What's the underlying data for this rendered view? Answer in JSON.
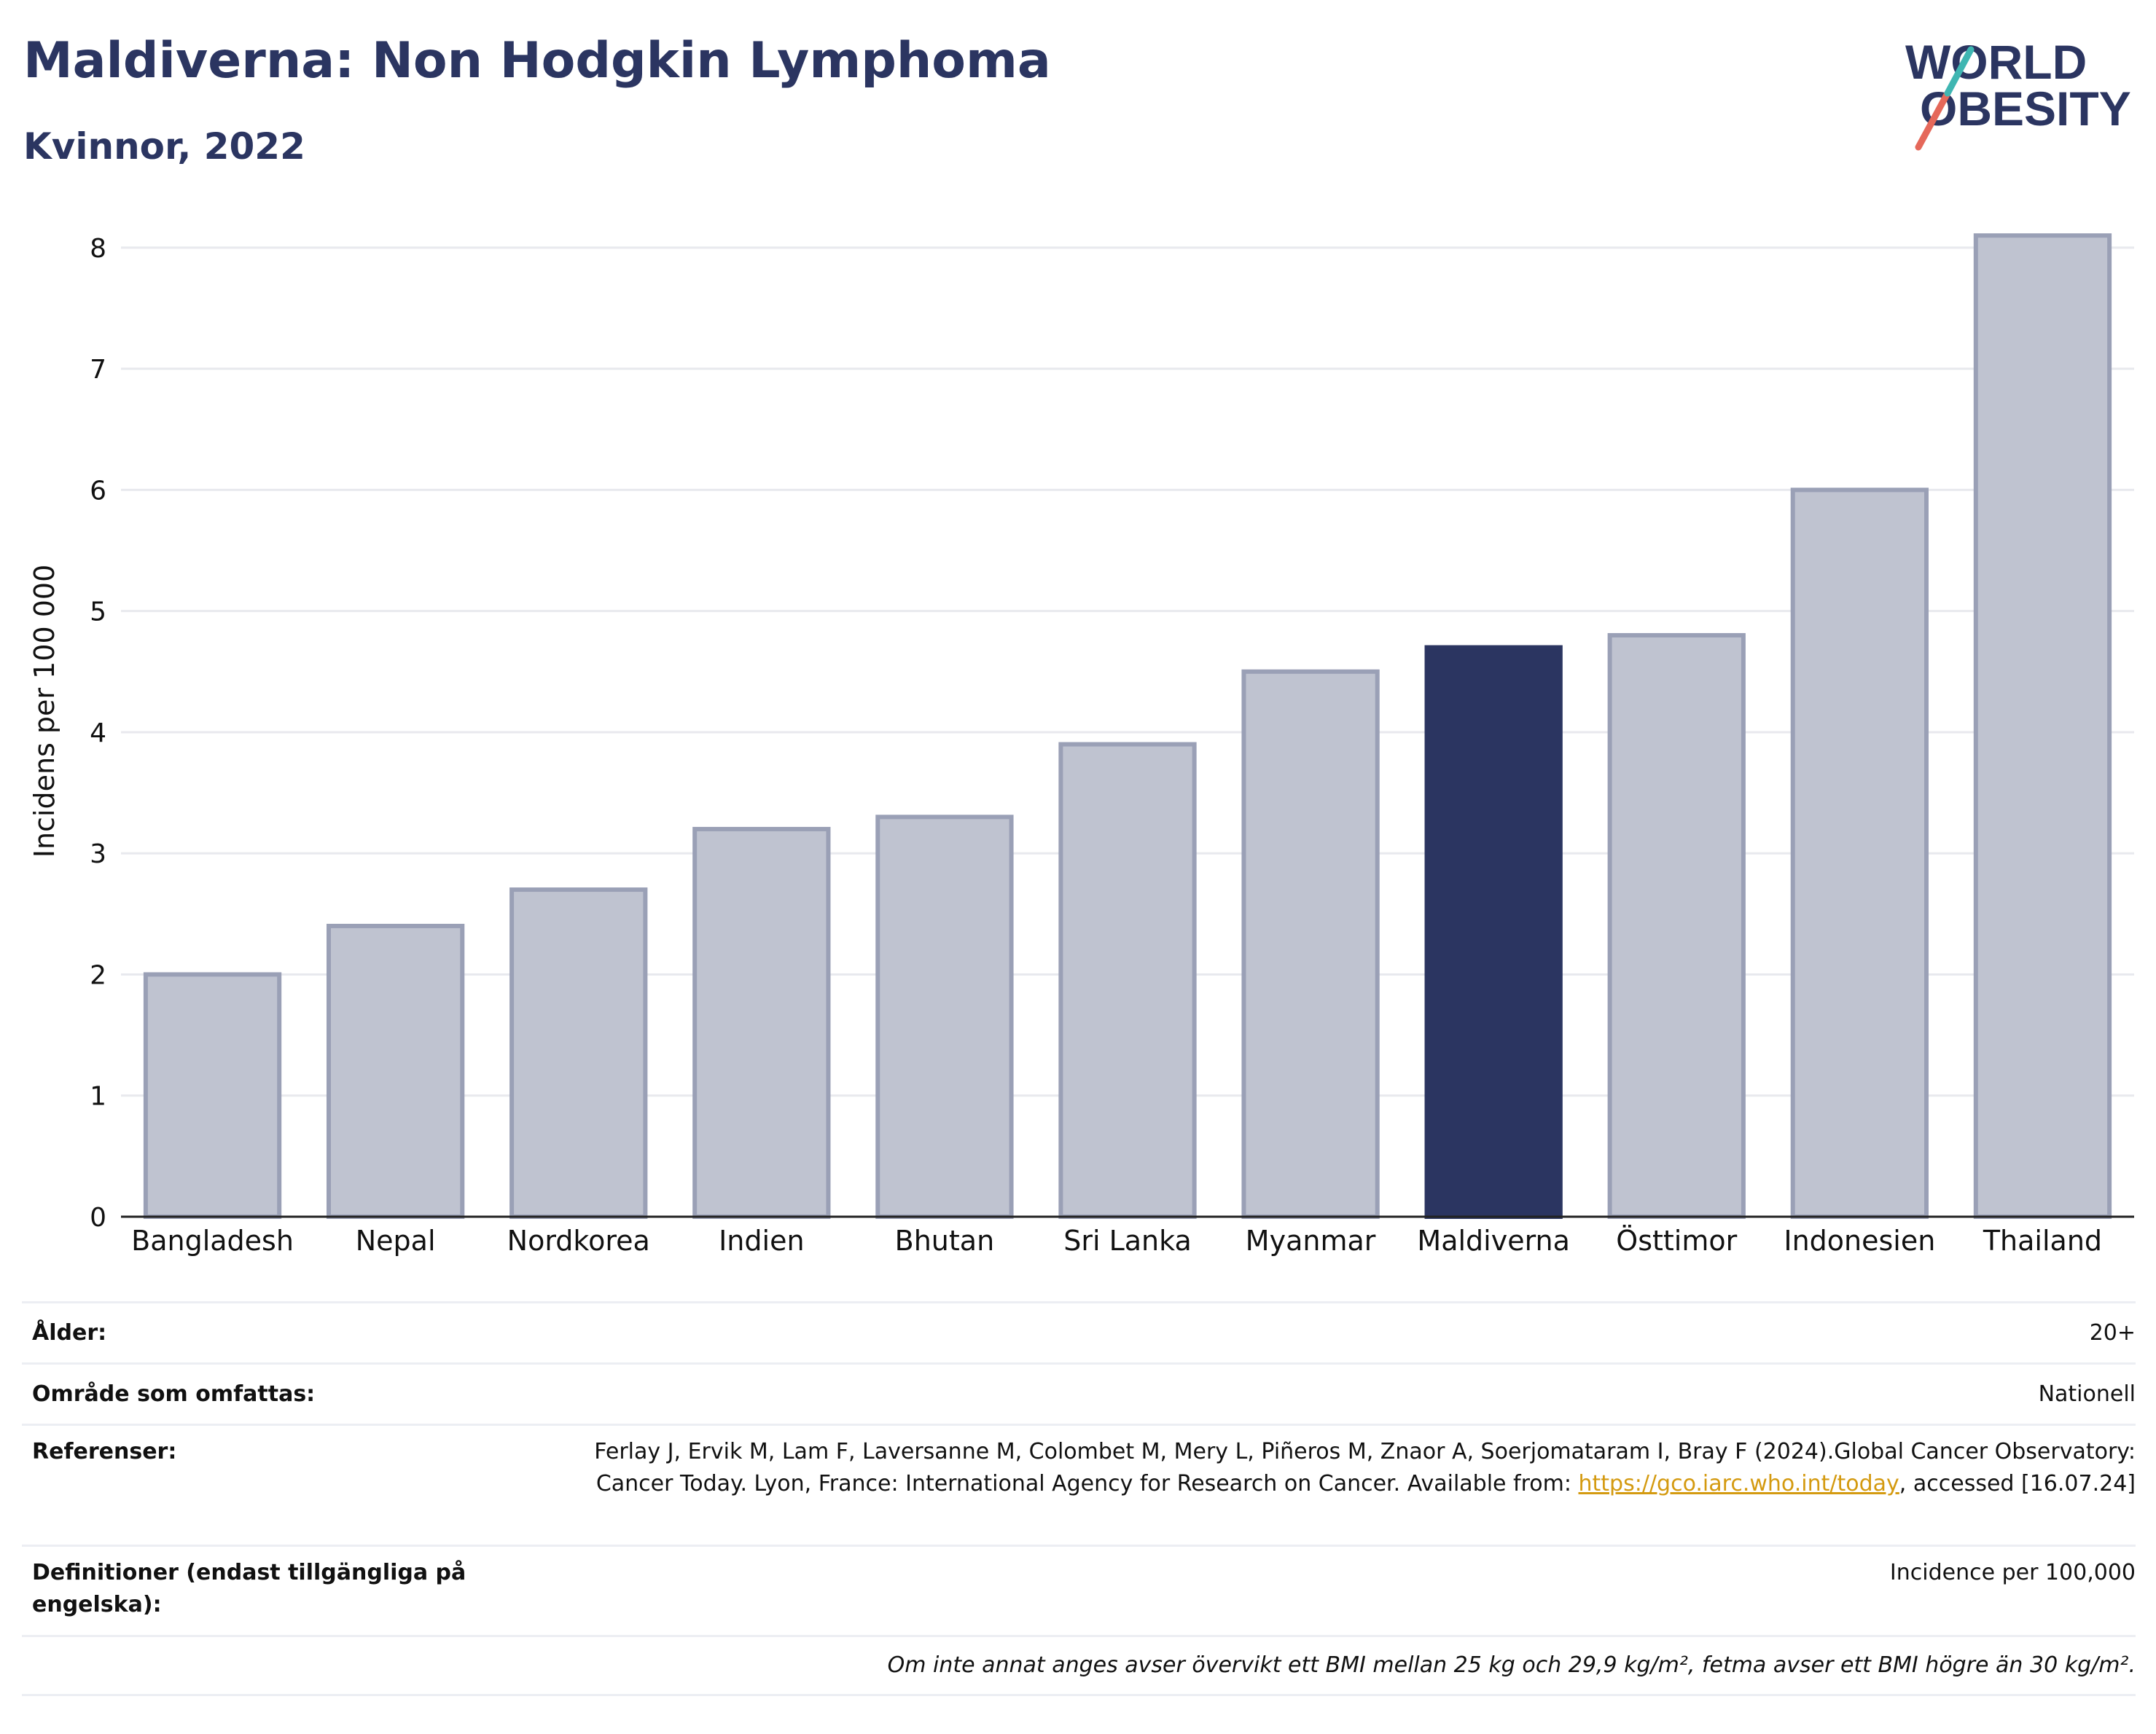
{
  "title": "Maldiverna: Non Hodgkin Lymphoma",
  "subtitle": "Kvinnor, 2022",
  "logo": {
    "line1": "WORLD",
    "line2": "OBESITY"
  },
  "colors": {
    "bar": "#bfc3d0",
    "bar_edge": "#9aa0b6",
    "highlight": "#2b3561",
    "grid": "#e8e9ee",
    "title": "#2b3561",
    "link": "#d49a10"
  },
  "chart_data": {
    "type": "bar",
    "categories": [
      "Bangladesh",
      "Nepal",
      "Nordkorea",
      "Indien",
      "Bhutan",
      "Sri Lanka",
      "Myanmar",
      "Maldiverna",
      "Östtimor",
      "Indonesien",
      "Thailand"
    ],
    "values": [
      2.0,
      2.4,
      2.7,
      3.2,
      3.3,
      3.9,
      4.5,
      4.7,
      4.8,
      6.0,
      8.1
    ],
    "highlight": "Maldiverna",
    "ylabel": "Incidens per 100 000",
    "xlabel": "",
    "ylim": [
      0,
      8.3
    ],
    "yticks": [
      0,
      1,
      2,
      3,
      4,
      5,
      6,
      7,
      8
    ],
    "grid": true
  },
  "meta": {
    "age_label": "Ålder:",
    "age_value": "20+",
    "area_label": "Område som omfattas:",
    "area_value": "Nationell",
    "ref_label": "Referenser:",
    "ref_text_1": "Ferlay J, Ervik M, Lam F, Laversanne M, Colombet M, Mery L, Piñeros M, Znaor A, Soerjomataram I, Bray F (2024).Global Cancer Observatory: Cancer Today. Lyon, France: International Agency for Research on Cancer. Available from: ",
    "ref_link": "https://gco.iarc.who.int/today",
    "ref_text_2": ", accessed [16.07.24]",
    "def_label": "Definitioner (endast tillgängliga på engelska):",
    "def_value": "Incidence per 100,000",
    "footnote": "Om inte annat anges avser övervikt ett BMI mellan 25 kg och 29,9 kg/m², fetma avser ett BMI högre än 30 kg/m²."
  }
}
